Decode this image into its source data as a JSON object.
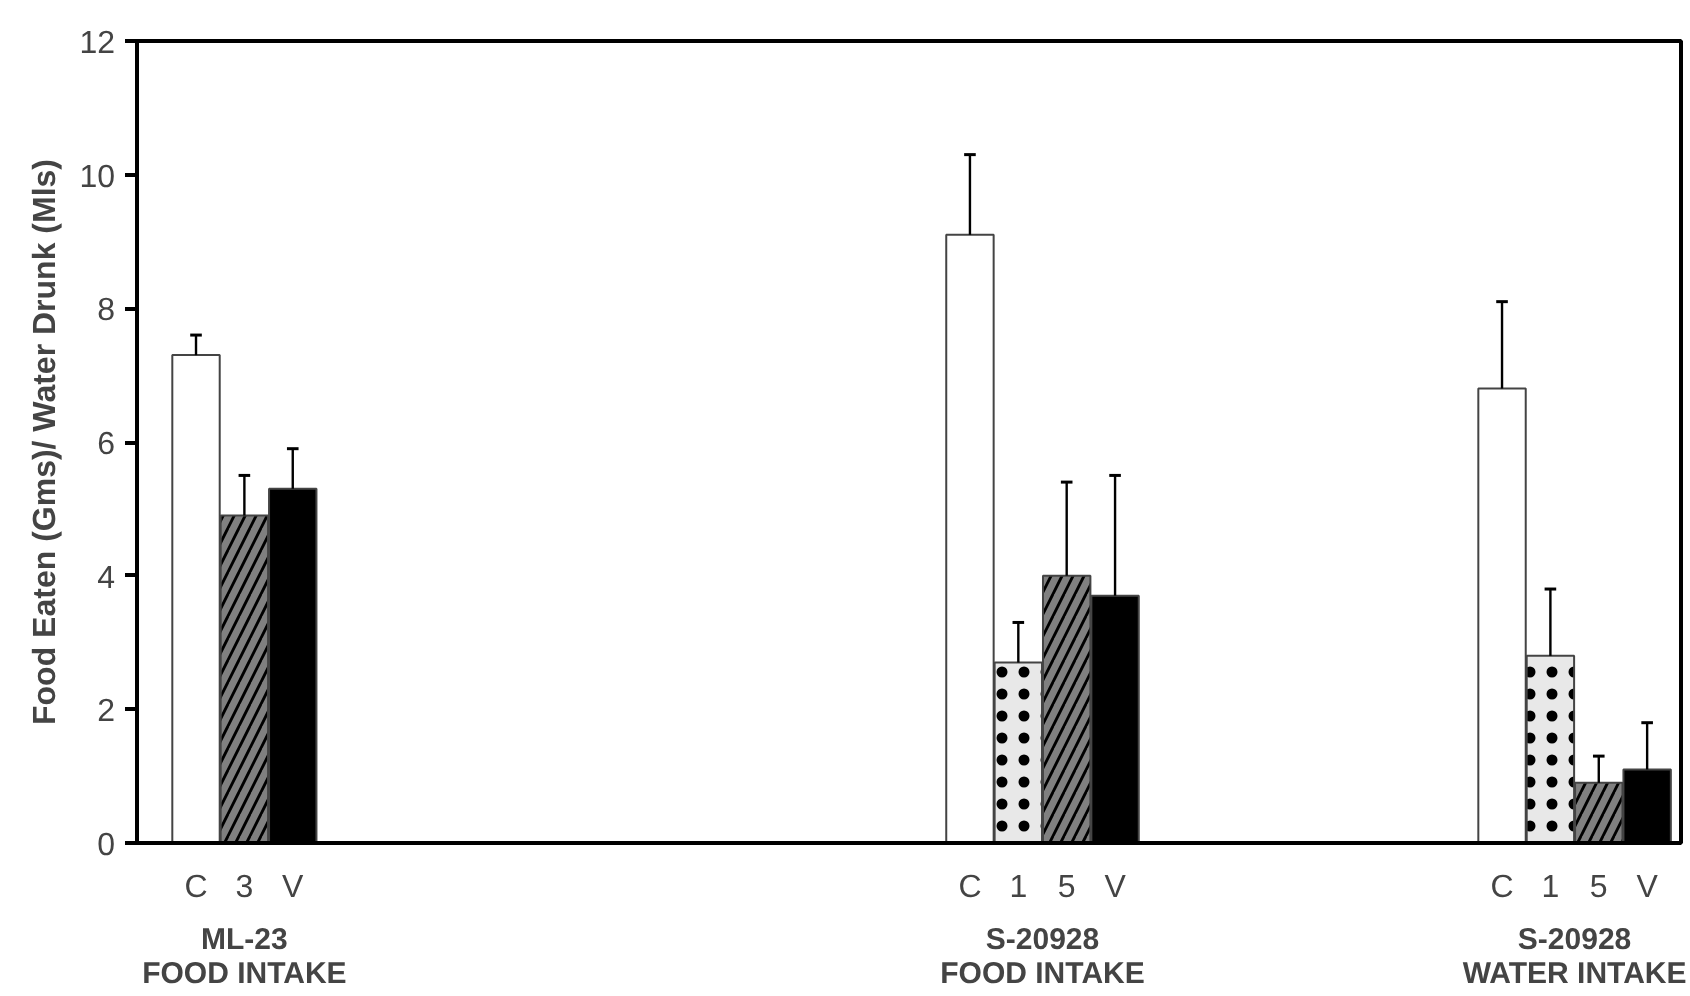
{
  "chart_data": {
    "type": "bar",
    "ylabel": "Food Eaten (Gms)/ Water Drunk (Mls)",
    "categories": [
      "C",
      "3",
      "V",
      null,
      null,
      null,
      null,
      null,
      null,
      null,
      null,
      null,
      null,
      null,
      null,
      null,
      "C",
      "1",
      "5",
      "V",
      null,
      null,
      null,
      null,
      null,
      null,
      null,
      "C",
      "1",
      "5",
      "V"
    ],
    "values": [
      7.3,
      4.9,
      5.3,
      null,
      null,
      null,
      null,
      null,
      null,
      null,
      null,
      null,
      null,
      null,
      null,
      null,
      9.1,
      2.7,
      4.0,
      3.7,
      null,
      null,
      null,
      null,
      null,
      null,
      null,
      6.8,
      2.8,
      0.9,
      1.1
    ],
    "colors": [
      "#ffffff",
      "#808080",
      "#000000",
      null,
      null,
      null,
      null,
      null,
      null,
      null,
      null,
      null,
      null,
      null,
      null,
      null,
      "#ffffff",
      "#e8e8e8",
      "#808080",
      "#000000",
      null,
      null,
      null,
      null,
      null,
      null,
      null,
      "#ffffff",
      "#e8e8e8",
      "#808080",
      "#000000"
    ],
    "errors": [
      [
        7.3,
        7.6
      ],
      [
        4.9,
        5.5
      ],
      [
        5.3,
        5.9
      ],
      null,
      null,
      null,
      null,
      null,
      null,
      null,
      null,
      null,
      null,
      null,
      null,
      null,
      [
        9.1,
        10.3
      ],
      [
        2.7,
        3.3
      ],
      [
        4.0,
        5.4
      ],
      [
        3.7,
        5.5
      ],
      null,
      null,
      null,
      null,
      null,
      null,
      null,
      [
        6.8,
        8.1
      ],
      [
        2.8,
        3.8
      ],
      [
        0.9,
        1.3
      ],
      [
        1.1,
        1.8
      ]
    ],
    "annotations": [
      "ML-23\nFOOD INTAKE",
      "S-20928\nFOOD INTAKE",
      "S-20928\nWATER INTAKE"
    ],
    "ylim": [
      0,
      12
    ],
    "yticks": [
      0,
      2,
      4,
      6,
      8,
      10,
      12
    ],
    "grid": false
  }
}
